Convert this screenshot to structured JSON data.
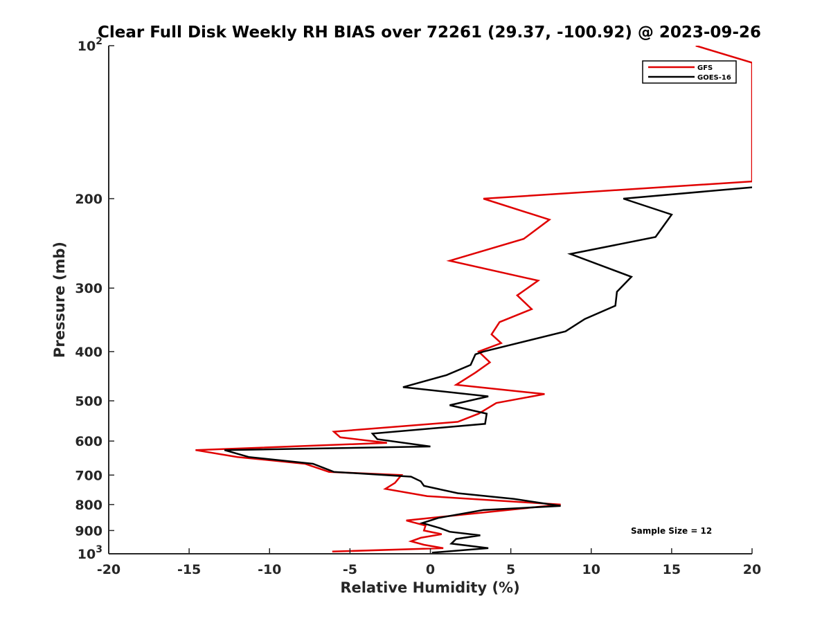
{
  "chart_data": {
    "type": "line",
    "title": "Clear Full Disk Weekly RH BIAS over 72261 (29.37, -100.92) @ 2023-09-26",
    "xlabel": "Relative Humidity (%)",
    "ylabel": "Pressure (mb)",
    "xlim": [
      -20,
      20
    ],
    "ylim": [
      100,
      1000
    ],
    "y_scale": "log",
    "y_reversed": true,
    "x_ticks": [
      "-20",
      "-15",
      "-10",
      "-5",
      "0",
      "5",
      "10",
      "15",
      "20"
    ],
    "y_ticks": [
      {
        "value": 100,
        "base": "10",
        "exp": "2"
      },
      {
        "value": 200,
        "label": "200"
      },
      {
        "value": 300,
        "label": "300"
      },
      {
        "value": 400,
        "label": "400"
      },
      {
        "value": 500,
        "label": "500"
      },
      {
        "value": 600,
        "label": "600"
      },
      {
        "value": 700,
        "label": "700"
      },
      {
        "value": 800,
        "label": "800"
      },
      {
        "value": 900,
        "label": "900"
      },
      {
        "value": 1000,
        "base": "10",
        "exp": "3"
      }
    ],
    "legend_position": "top-right",
    "annotation": "Sample Size = 12",
    "series": [
      {
        "name": "GFS",
        "color": "#e00000",
        "points": [
          [
            16.5,
            100
          ],
          [
            20,
            108
          ],
          [
            20,
            185
          ],
          [
            3.3,
            200
          ],
          [
            7.4,
            220
          ],
          [
            5.8,
            240
          ],
          [
            1.2,
            265
          ],
          [
            6.7,
            290
          ],
          [
            5.4,
            310
          ],
          [
            6.3,
            330
          ],
          [
            4.3,
            350
          ],
          [
            3.8,
            370
          ],
          [
            4.4,
            385
          ],
          [
            3.0,
            400
          ],
          [
            3.7,
            420
          ],
          [
            2.8,
            440
          ],
          [
            1.6,
            465
          ],
          [
            7.1,
            485
          ],
          [
            4.1,
            505
          ],
          [
            3.0,
            530
          ],
          [
            1.7,
            550
          ],
          [
            -6.0,
            575
          ],
          [
            -5.6,
            590
          ],
          [
            -2.7,
            605
          ],
          [
            -14.6,
            625
          ],
          [
            -12.0,
            645
          ],
          [
            -7.8,
            665
          ],
          [
            -6.3,
            690
          ],
          [
            -1.8,
            700
          ],
          [
            -2.2,
            725
          ],
          [
            -2.8,
            745
          ],
          [
            -0.2,
            770
          ],
          [
            8.1,
            800
          ],
          [
            3.2,
            830
          ],
          [
            -1.5,
            860
          ],
          [
            -0.3,
            880
          ],
          [
            -0.4,
            900
          ],
          [
            0.7,
            915
          ],
          [
            -0.6,
            930
          ],
          [
            -1.2,
            945
          ],
          [
            -0.4,
            960
          ],
          [
            0.8,
            975
          ],
          [
            -6.1,
            990
          ]
        ]
      },
      {
        "name": "GOES-16",
        "color": "#000000",
        "points": [
          [
            20,
            190
          ],
          [
            12.0,
            200
          ],
          [
            15.0,
            215
          ],
          [
            14.0,
            238
          ],
          [
            8.7,
            257
          ],
          [
            12.5,
            285
          ],
          [
            11.6,
            305
          ],
          [
            11.5,
            325
          ],
          [
            9.6,
            345
          ],
          [
            8.4,
            365
          ],
          [
            3.3,
            400
          ],
          [
            2.8,
            405
          ],
          [
            2.5,
            425
          ],
          [
            1.0,
            445
          ],
          [
            -1.7,
            470
          ],
          [
            3.6,
            490
          ],
          [
            1.2,
            510
          ],
          [
            3.5,
            530
          ],
          [
            3.4,
            555
          ],
          [
            -3.6,
            580
          ],
          [
            -3.3,
            595
          ],
          [
            0.0,
            615
          ],
          [
            -12.8,
            625
          ],
          [
            -11.3,
            645
          ],
          [
            -7.3,
            665
          ],
          [
            -6.0,
            690
          ],
          [
            -1.2,
            705
          ],
          [
            -0.6,
            720
          ],
          [
            -0.4,
            735
          ],
          [
            1.7,
            760
          ],
          [
            5.2,
            780
          ],
          [
            8.1,
            805
          ],
          [
            3.3,
            820
          ],
          [
            0.5,
            850
          ],
          [
            -0.5,
            870
          ],
          [
            0.6,
            890
          ],
          [
            1.2,
            905
          ],
          [
            3.1,
            920
          ],
          [
            1.6,
            935
          ],
          [
            1.3,
            955
          ],
          [
            3.6,
            975
          ],
          [
            0.1,
            995
          ]
        ]
      }
    ]
  }
}
